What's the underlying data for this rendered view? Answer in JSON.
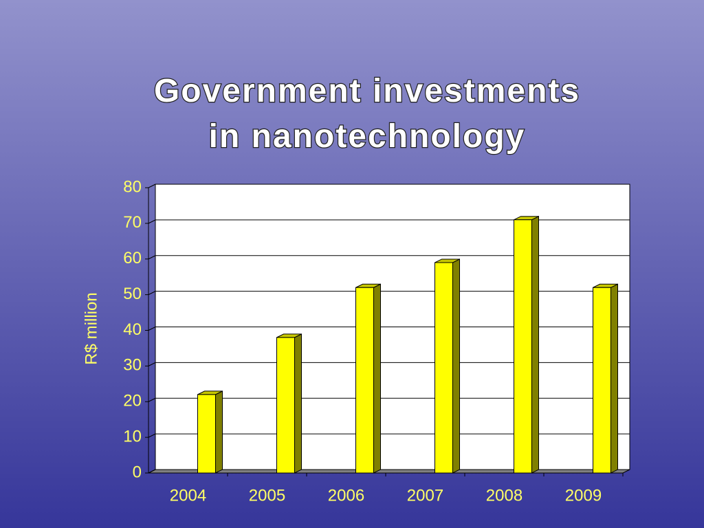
{
  "chart_data": {
    "type": "bar",
    "title": "Government investments in nanotechnology",
    "y_label": "R$ million",
    "categories": [
      "2004",
      "2005",
      "2006",
      "2007",
      "2008",
      "2009"
    ],
    "values": [
      22,
      38,
      52,
      59,
      71,
      52
    ],
    "color": "#ffff00",
    "ylim": [
      0,
      80
    ],
    "yticks": [
      0,
      10,
      20,
      30,
      40,
      50,
      60,
      70,
      80
    ],
    "grid": true
  }
}
